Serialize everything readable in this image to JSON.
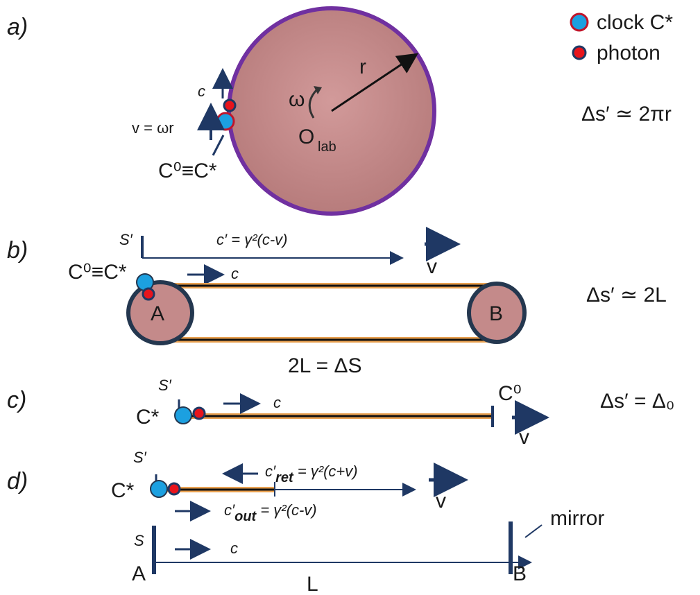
{
  "legend": {
    "clock_label": "clock C*",
    "photon_label": "photon"
  },
  "panel_a": {
    "tag": "a)",
    "r": "r",
    "omega": "ω",
    "center": "O",
    "center_sub": "lab",
    "c": "c",
    "v_eq": "v = ωr",
    "clocks": "C⁰≡C*",
    "ds": "Δs′ ≃ 2πr"
  },
  "panel_b": {
    "tag": "b)",
    "frame": "S′",
    "c_prime_eq": "c′ = γ²(c-v)",
    "v": "v",
    "clocks": "C⁰≡C*",
    "c": "c",
    "A": "A",
    "B": "B",
    "length": "2L = ΔS",
    "ds": "Δs′ ≃ 2L"
  },
  "panel_c": {
    "tag": "c)",
    "frame": "S′",
    "clock": "C*",
    "c": "c",
    "c0": "C⁰",
    "v": "v",
    "ds": "Δs′ = Δ₀"
  },
  "panel_d": {
    "tag": "d)",
    "frame_moving": "S′",
    "clock": "C*",
    "c_ret_eq_a": "c′",
    "c_ret_sub": "ret",
    "c_ret_eq_b": " = γ²(c+v)",
    "v": "v",
    "c_out_eq_a": "c′",
    "c_out_sub": "out",
    "c_out_eq_b": " = γ²(c-v)",
    "mirror": "mirror",
    "frame_lab": "S",
    "c": "c",
    "A": "A",
    "B": "B",
    "L": "L"
  },
  "colors": {
    "navy": "#1f3864",
    "clock_fill": "#1ca0e0",
    "photon_fill": "#e8141c",
    "disk_fill": "#c48a8a",
    "disk_edge": "#7030a0",
    "belt": "#e8a050"
  }
}
